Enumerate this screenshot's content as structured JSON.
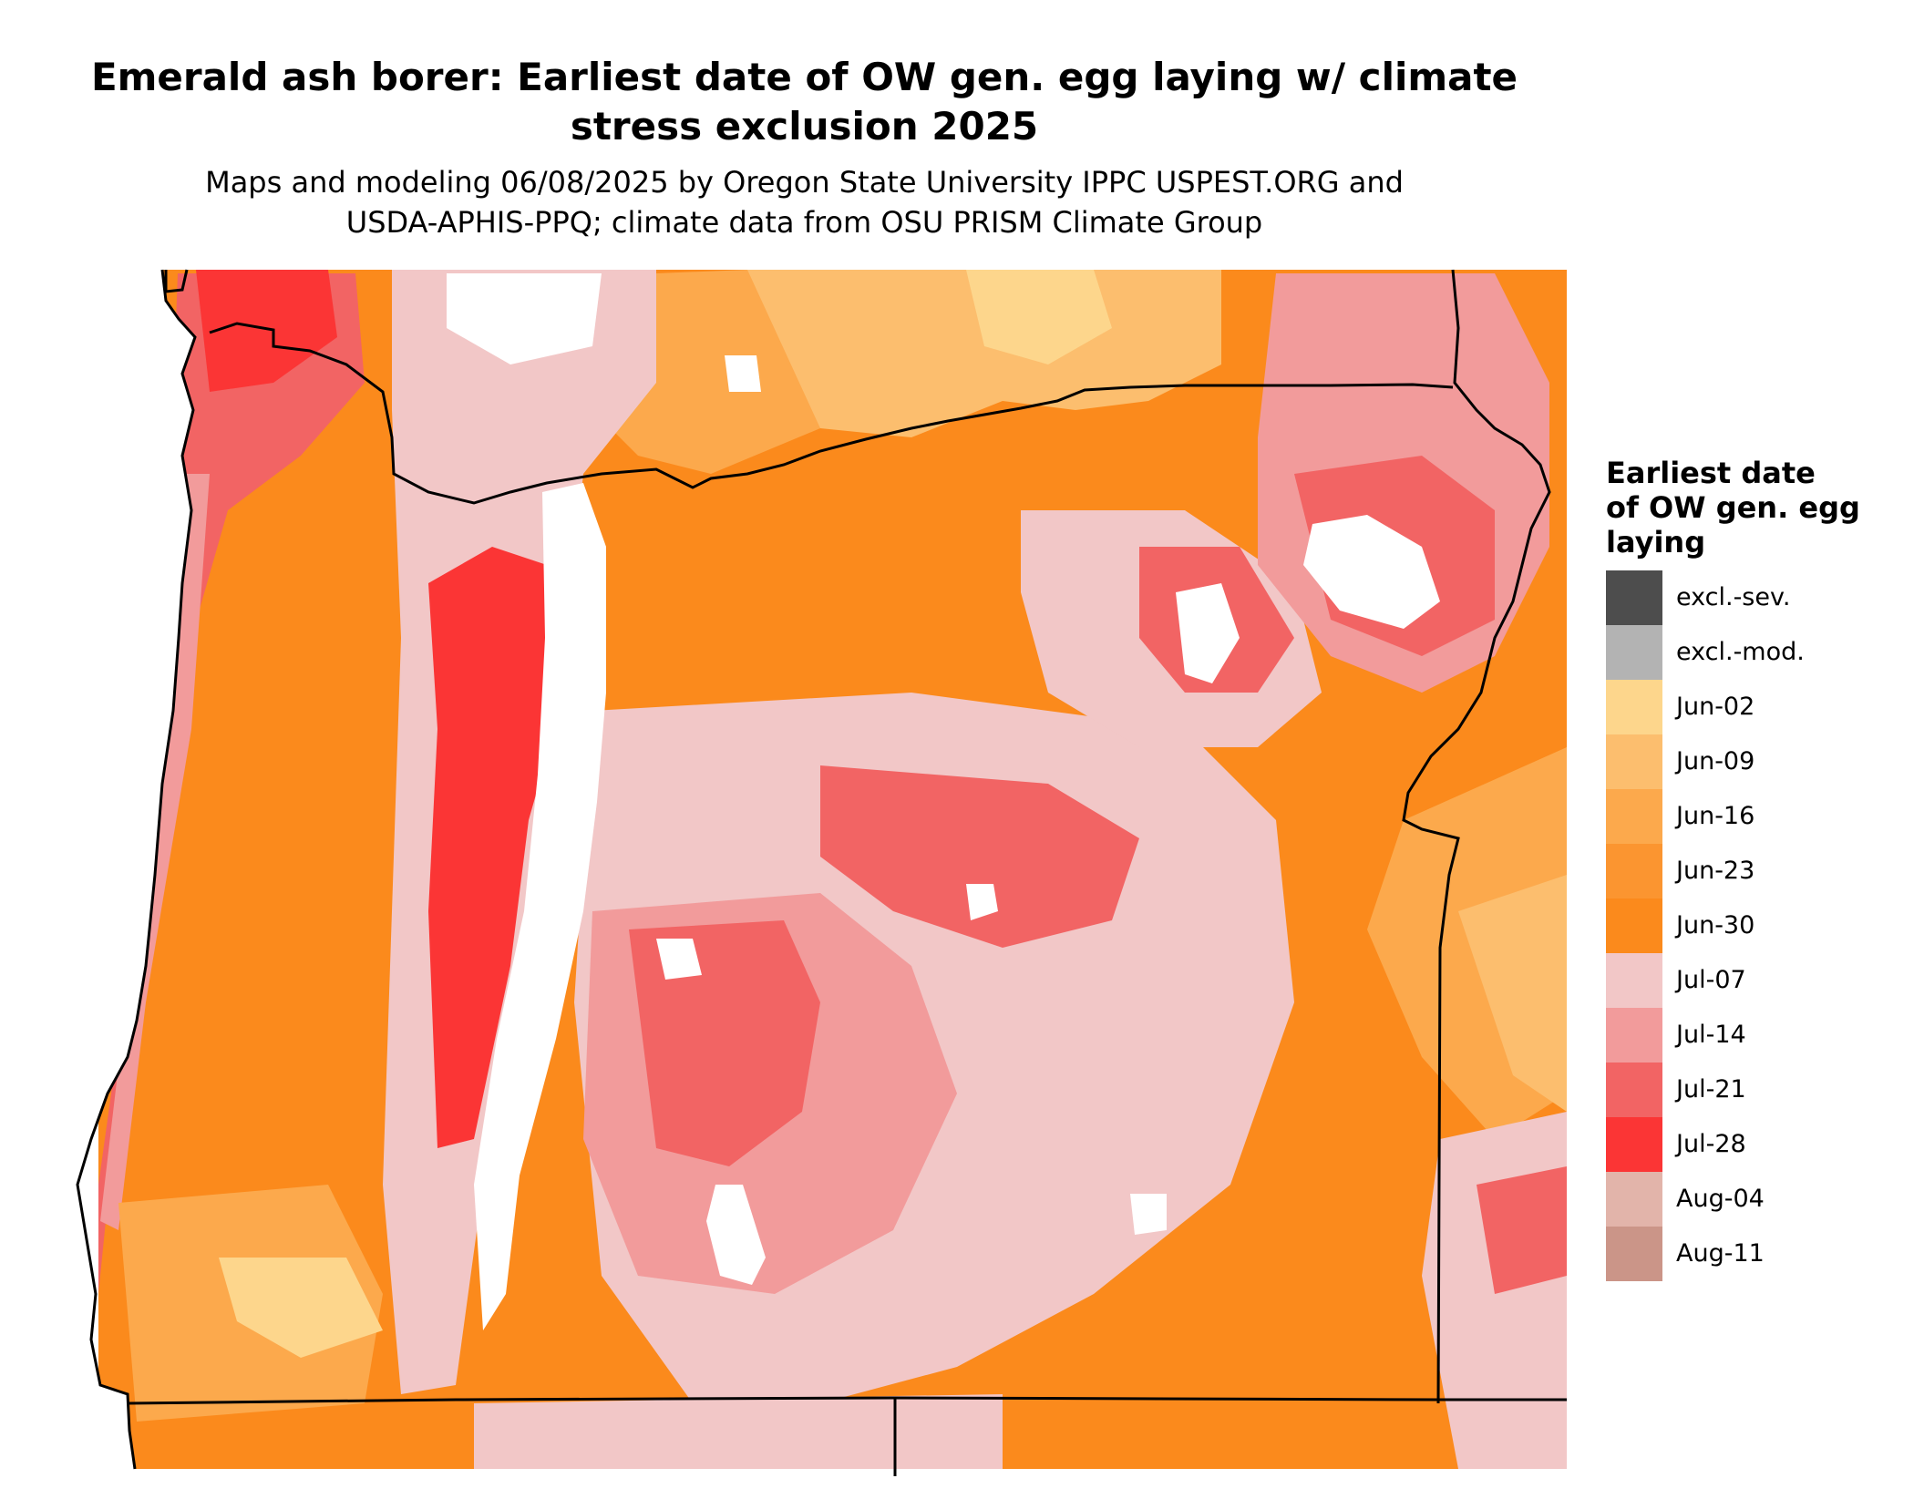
{
  "title": "Emerald ash borer: Earliest date of OW gen. egg laying w/ climate stress exclusion 2025",
  "title_line1": "Emerald ash borer: Earliest date of OW gen. egg laying w/ climate",
  "title_line2": "stress exclusion 2025",
  "subtitle_line1": "Maps and modeling 06/08/2025 by Oregon State University IPPC USPEST.ORG and",
  "subtitle_line2": "USDA-APHIS-PPQ; climate data from OSU PRISM Climate Group",
  "legend": {
    "title_line1": "Earliest date",
    "title_line2": "of OW gen. egg",
    "title_line3": "laying",
    "items": [
      {
        "label": "excl.-sev.",
        "color": "#4d4d4d"
      },
      {
        "label": "excl.-mod.",
        "color": "#b3b3b3"
      },
      {
        "label": "Jun-02",
        "color": "#fdd68c"
      },
      {
        "label": "Jun-09",
        "color": "#fcbe6e"
      },
      {
        "label": "Jun-16",
        "color": "#fca94c"
      },
      {
        "label": "Jun-23",
        "color": "#fb9530"
      },
      {
        "label": "Jun-30",
        "color": "#fb8a1c"
      },
      {
        "label": "Jul-07",
        "color": "#f2c7c7"
      },
      {
        "label": "Jul-14",
        "color": "#f29b9b"
      },
      {
        "label": "Jul-21",
        "color": "#f26464"
      },
      {
        "label": "Jul-28",
        "color": "#fb3535"
      },
      {
        "label": "Aug-04",
        "color": "#e2b4aa"
      },
      {
        "label": "Aug-11",
        "color": "#cb9588"
      }
    ]
  }
}
